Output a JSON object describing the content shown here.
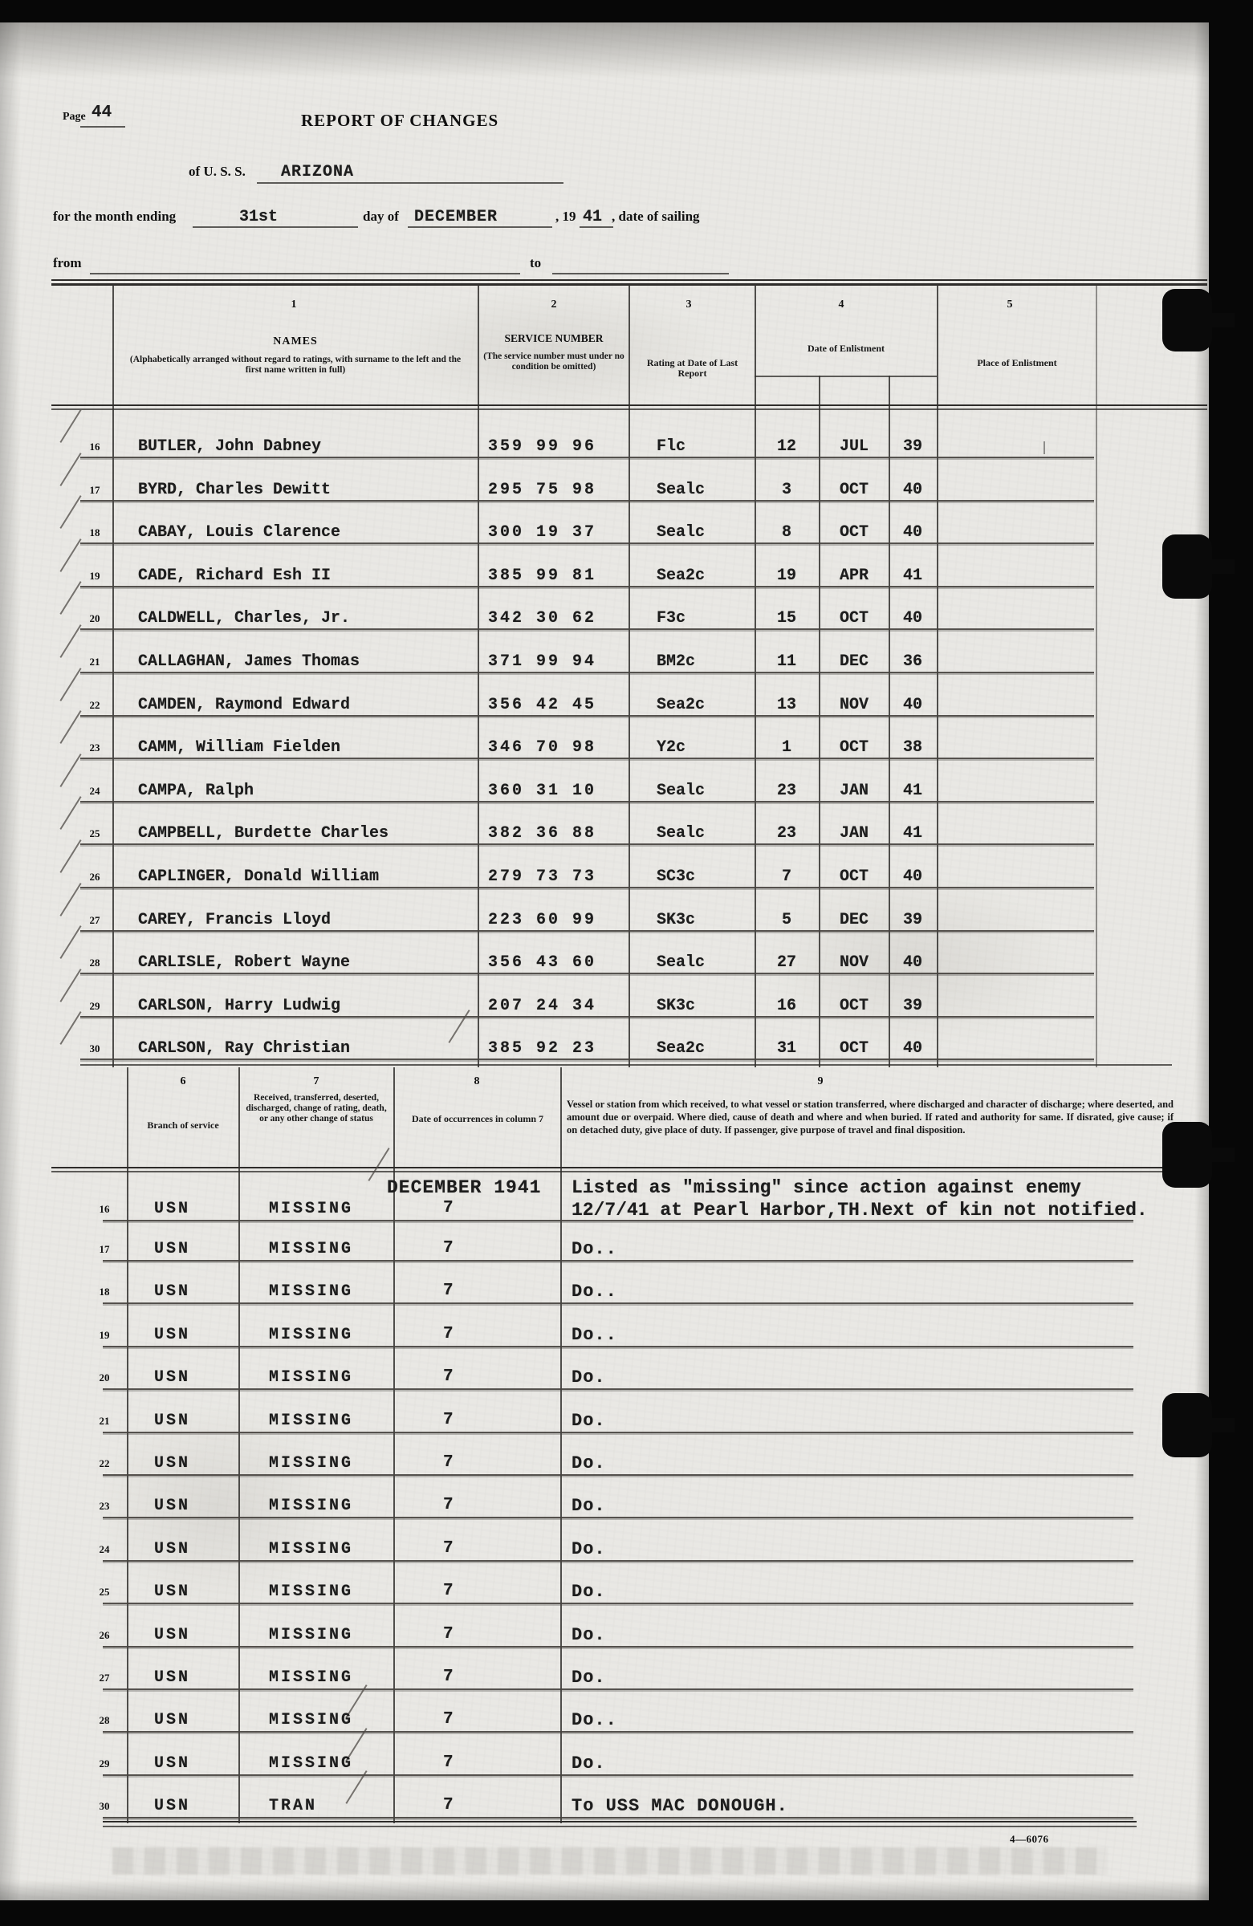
{
  "page": {
    "label": "Page",
    "number": "44"
  },
  "title": "REPORT OF CHANGES",
  "ship_line": {
    "prefix": "of U. S. S.",
    "name": "ARIZONA"
  },
  "month_line": {
    "label1": "for the month ending",
    "day": "31st",
    "label2": "day of",
    "month": "DECEMBER",
    "label3": ", 19",
    "year": "41",
    "label4": ", date of sailing"
  },
  "route_line": {
    "from_label": "from",
    "to_label": "to"
  },
  "table1": {
    "col_numbers": [
      "1",
      "2",
      "3",
      "4",
      "5"
    ],
    "headers": {
      "names": "NAMES",
      "names_sub": "(Alphabetically arranged without regard to ratings, with surname to the left and the first name written in full)",
      "service": "SERVICE NUMBER",
      "service_sub": "(The service number must under no condition be omitted)",
      "rating": "Rating at Date of Last Report",
      "enlist_date": "Date of Enlistment",
      "enlist_place": "Place of Enlistment"
    },
    "rows": [
      {
        "no": "16",
        "name": "BUTLER, John Dabney",
        "service": "359 99 96",
        "rating": "Flc",
        "day": "12",
        "month": "JUL",
        "year": "39"
      },
      {
        "no": "17",
        "name": "BYRD, Charles Dewitt",
        "service": "295 75 98",
        "rating": "Sealc",
        "day": "3",
        "month": "OCT",
        "year": "40"
      },
      {
        "no": "18",
        "name": "CABAY, Louis Clarence",
        "service": "300 19 37",
        "rating": "Sealc",
        "day": "8",
        "month": "OCT",
        "year": "40"
      },
      {
        "no": "19",
        "name": "CADE, Richard Esh II",
        "service": "385 99 81",
        "rating": "Sea2c",
        "day": "19",
        "month": "APR",
        "year": "41"
      },
      {
        "no": "20",
        "name": "CALDWELL, Charles, Jr.",
        "service": "342 30 62",
        "rating": "F3c",
        "day": "15",
        "month": "OCT",
        "year": "40"
      },
      {
        "no": "21",
        "name": "CALLAGHAN, James Thomas",
        "service": "371 99 94",
        "rating": "BM2c",
        "day": "11",
        "month": "DEC",
        "year": "36"
      },
      {
        "no": "22",
        "name": "CAMDEN, Raymond Edward",
        "service": "356 42 45",
        "rating": "Sea2c",
        "day": "13",
        "month": "NOV",
        "year": "40"
      },
      {
        "no": "23",
        "name": "CAMM, William Fielden",
        "service": "346 70 98",
        "rating": "Y2c",
        "day": "1",
        "month": "OCT",
        "year": "38"
      },
      {
        "no": "24",
        "name": "CAMPA, Ralph",
        "service": "360 31 10",
        "rating": "Sealc",
        "day": "23",
        "month": "JAN",
        "year": "41"
      },
      {
        "no": "25",
        "name": "CAMPBELL, Burdette Charles",
        "service": "382 36 88",
        "rating": "Sealc",
        "day": "23",
        "month": "JAN",
        "year": "41"
      },
      {
        "no": "26",
        "name": "CAPLINGER, Donald William",
        "service": "279 73 73",
        "rating": "SC3c",
        "day": "7",
        "month": "OCT",
        "year": "40"
      },
      {
        "no": "27",
        "name": "CAREY, Francis Lloyd",
        "service": "223 60 99",
        "rating": "SK3c",
        "day": "5",
        "month": "DEC",
        "year": "39"
      },
      {
        "no": "28",
        "name": "CARLISLE, Robert Wayne",
        "service": "356 43 60",
        "rating": "Sealc",
        "day": "27",
        "month": "NOV",
        "year": "40"
      },
      {
        "no": "29",
        "name": "CARLSON, Harry Ludwig",
        "service": "207 24 34",
        "rating": "SK3c",
        "day": "16",
        "month": "OCT",
        "year": "39"
      },
      {
        "no": "30",
        "name": "CARLSON, Ray Christian",
        "service": "385 92 23",
        "rating": "Sea2c",
        "day": "31",
        "month": "OCT",
        "year": "40"
      }
    ]
  },
  "table2": {
    "col_numbers": [
      "6",
      "7",
      "8",
      "9"
    ],
    "headers": {
      "branch": "Branch of service",
      "change": "Received, transferred, deserted, discharged, change of rating, death, or any other change of status",
      "date": "Date of occurrences in column 7",
      "vessel": "Vessel or station from which received, to what vessel or station transferred, where discharged and character of discharge; where deserted, and amount due or overpaid.  Where died, cause of death and where and when buried.  If rated and authority for same.  If disrated, give cause; if on detached duty, give place of duty.  If passenger, give purpose of travel and final disposition."
    },
    "first_row_date_header": "DECEMBER 1941",
    "rows": [
      {
        "no": "16",
        "branch": "USN",
        "change": "MISSING",
        "date": "7",
        "remark": "Listed as \"missing\" since action against enemy",
        "remark2": "12/7/41 at Pearl Harbor,TH.Next of kin not notified.",
        "tick": true
      },
      {
        "no": "17",
        "branch": "USN",
        "change": "MISSING",
        "date": "7",
        "remark": "Do.."
      },
      {
        "no": "18",
        "branch": "USN",
        "change": "MISSING",
        "date": "7",
        "remark": "Do.."
      },
      {
        "no": "19",
        "branch": "USN",
        "change": "MISSING",
        "date": "7",
        "remark": "Do.."
      },
      {
        "no": "20",
        "branch": "USN",
        "change": "MISSING",
        "date": "7",
        "remark": "Do."
      },
      {
        "no": "21",
        "branch": "USN",
        "change": "MISSING",
        "date": "7",
        "remark": "Do."
      },
      {
        "no": "22",
        "branch": "USN",
        "change": "MISSING",
        "date": "7",
        "remark": "Do."
      },
      {
        "no": "23",
        "branch": "USN",
        "change": "MISSING",
        "date": "7",
        "remark": "Do."
      },
      {
        "no": "24",
        "branch": "USN",
        "change": "MISSING",
        "date": "7",
        "remark": "Do."
      },
      {
        "no": "25",
        "branch": "USN",
        "change": "MISSING",
        "date": "7",
        "remark": "Do."
      },
      {
        "no": "26",
        "branch": "USN",
        "change": "MISSING",
        "date": "7",
        "remark": "Do."
      },
      {
        "no": "27",
        "branch": "USN",
        "change": "MISSING",
        "date": "7",
        "remark": "Do."
      },
      {
        "no": "28",
        "branch": "USN",
        "change": "MISSING",
        "date": "7",
        "remark": "Do..",
        "tick": true
      },
      {
        "no": "29",
        "branch": "USN",
        "change": "MISSING",
        "date": "7",
        "remark": "Do.",
        "tick": true
      },
      {
        "no": "30",
        "branch": "USN",
        "change": "TRAN",
        "date": "7",
        "remark": "To USS MAC DONOUGH.",
        "tick": true
      }
    ]
  },
  "footer": {
    "form_number": "4—6076"
  }
}
